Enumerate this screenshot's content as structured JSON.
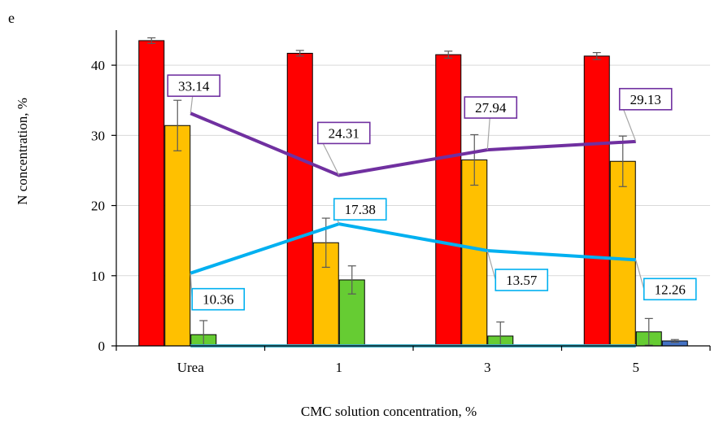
{
  "chart_data": {
    "type": "bar",
    "panel_label": "e",
    "title": "",
    "xlabel": "CMC solution concentration, %",
    "ylabel": "N concentration, %",
    "categories": [
      "Urea",
      "1",
      "3",
      "5"
    ],
    "ylim": [
      0,
      45
    ],
    "yticks": [
      0,
      10,
      20,
      30,
      40
    ],
    "grid": true,
    "legend": "none",
    "bar_series": [
      {
        "color": "#ff0000",
        "values": [
          43.5,
          41.7,
          41.5,
          41.3
        ],
        "errors": [
          0.4,
          0.4,
          0.5,
          0.5
        ]
      },
      {
        "color": "#ffc000",
        "values": [
          31.4,
          14.7,
          26.5,
          26.3
        ],
        "errors": [
          3.6,
          3.5,
          3.6,
          3.6
        ]
      },
      {
        "color": "#66cc33",
        "values": [
          1.6,
          9.4,
          1.4,
          2.0
        ],
        "errors": [
          2.0,
          2.0,
          2.0,
          1.9
        ]
      },
      {
        "color": "#4472c4",
        "values": [
          0,
          0,
          0,
          0.7
        ],
        "errors": [
          0,
          0,
          0,
          0.2
        ]
      }
    ],
    "line_series": [
      {
        "color": "#7030a0",
        "values": [
          33.14,
          24.31,
          27.94,
          29.13
        ],
        "labels": [
          "33.14",
          "24.31",
          "27.94",
          "29.13"
        ]
      },
      {
        "color": "#00b0f0",
        "values": [
          10.36,
          17.38,
          13.57,
          12.26
        ],
        "labels": [
          "10.36",
          "17.38",
          "13.57",
          "12.26"
        ]
      },
      {
        "color": "#3fb0c8",
        "values": [
          0,
          0,
          0,
          0
        ],
        "labels": []
      }
    ]
  }
}
